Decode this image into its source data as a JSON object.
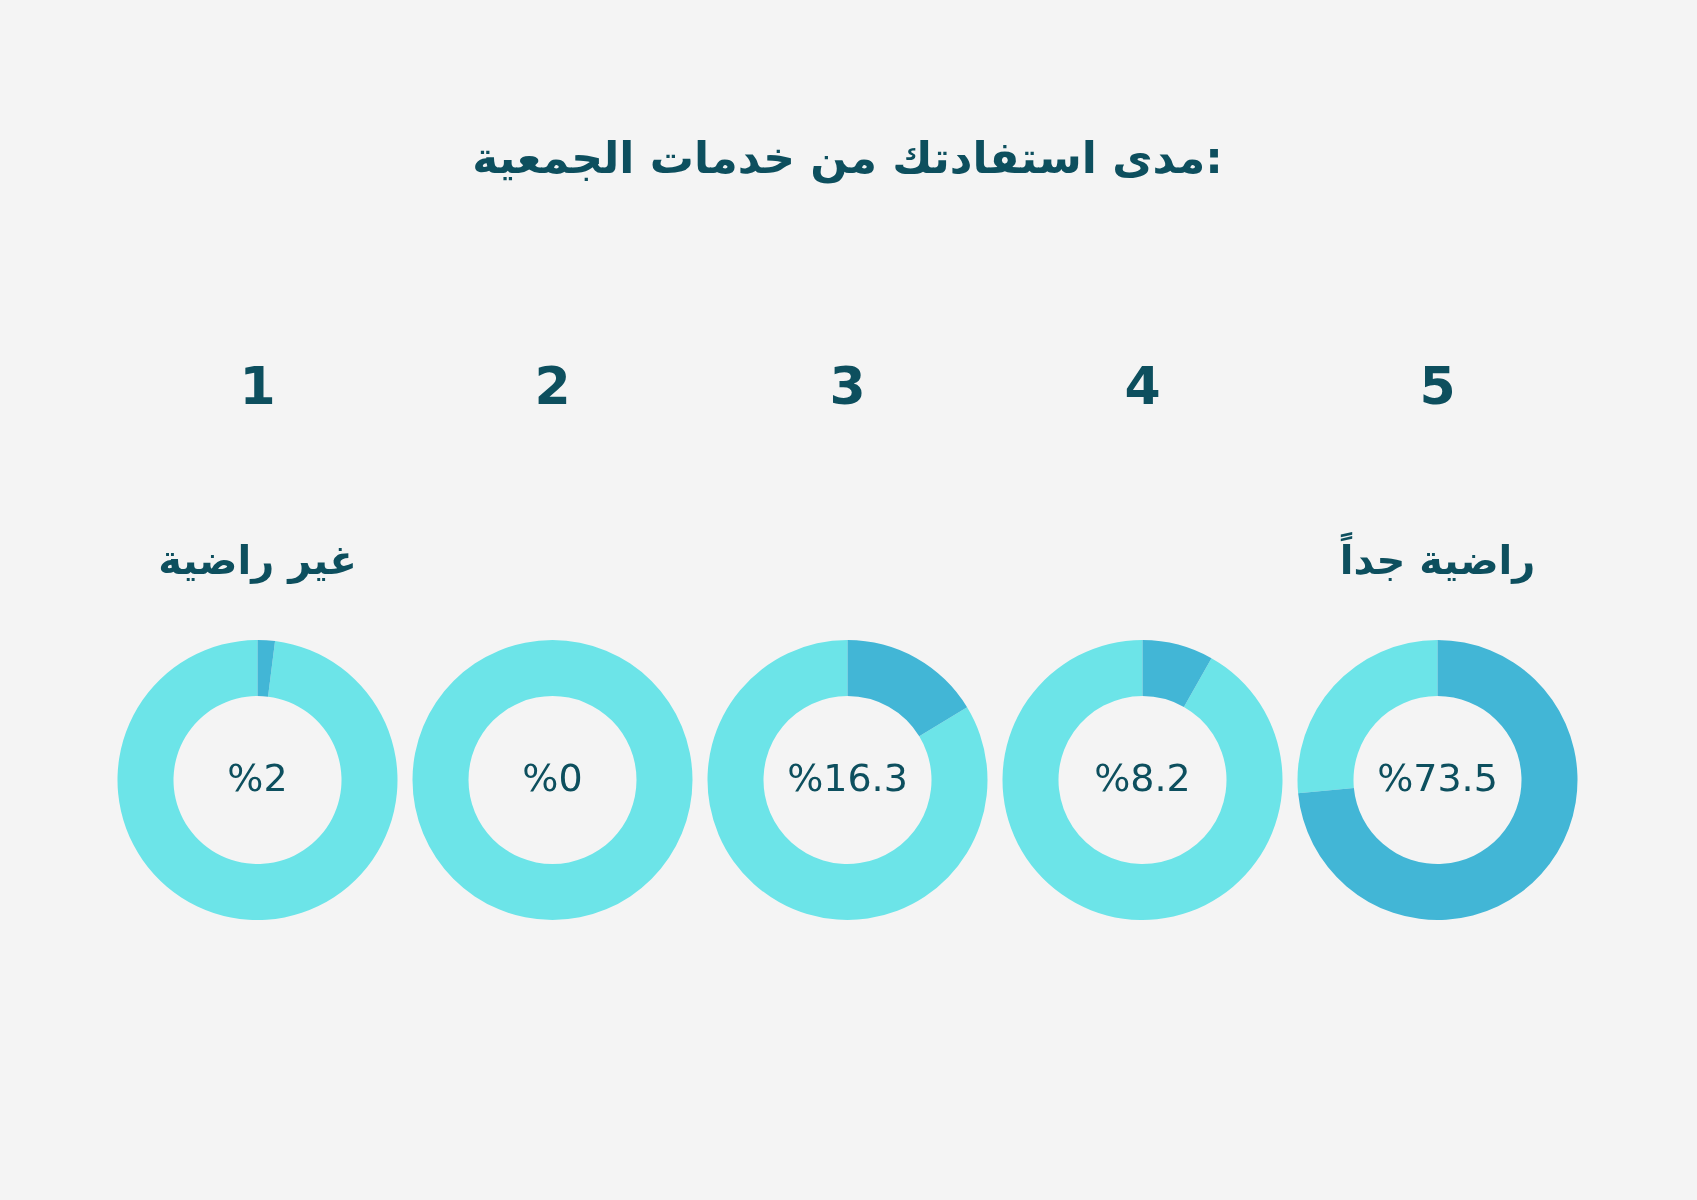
{
  "chart_data": [
    {
      "type": "donut",
      "title": "1",
      "subtitle": "غير راضية",
      "annotations": [
        "مدى استفادتك من خدمات الجمعية:"
      ],
      "categories": [
        null,
        null
      ],
      "values": [
        2,
        98
      ],
      "colors": [
        "#42b6d6",
        "#6ce4e8"
      ],
      "value_labels": [
        "%2",
        null
      ]
    },
    {
      "type": "donut",
      "title": "2",
      "categories": [
        null,
        null
      ],
      "values": [
        0,
        100
      ],
      "colors": [
        "#42b6d6",
        "#6ce4e8"
      ],
      "value_labels": [
        "%0",
        null
      ]
    },
    {
      "type": "donut",
      "title": "3",
      "categories": [
        null,
        null
      ],
      "values": [
        16.3,
        83.7
      ],
      "colors": [
        "#42b6d6",
        "#6ce4e8"
      ],
      "value_labels": [
        "%16.3",
        null
      ]
    },
    {
      "type": "donut",
      "title": "4",
      "categories": [
        null,
        null
      ],
      "values": [
        8.2,
        91.8
      ],
      "colors": [
        "#42b6d6",
        "#6ce4e8"
      ],
      "value_labels": [
        "%8.2",
        null
      ]
    },
    {
      "type": "donut",
      "title": "5",
      "subtitle": "راضية جداً",
      "categories": [
        null,
        null
      ],
      "values": [
        73.5,
        26.5
      ],
      "colors": [
        "#42b6d6",
        "#6ce4e8"
      ],
      "value_labels": [
        "%73.5",
        null
      ]
    }
  ]
}
